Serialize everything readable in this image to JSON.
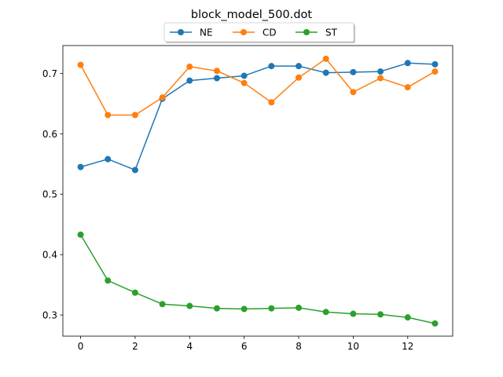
{
  "chart_data": {
    "type": "line",
    "title": "block_model_500.dot",
    "xlabel": "",
    "ylabel": "",
    "x": [
      0,
      1,
      2,
      3,
      4,
      5,
      6,
      7,
      8,
      9,
      10,
      11,
      12,
      13
    ],
    "xlim": [
      -0.65,
      13.65
    ],
    "ylim": [
      0.265,
      0.746
    ],
    "xticks": [
      0,
      2,
      4,
      6,
      8,
      10,
      12
    ],
    "yticks": [
      0.3,
      0.4,
      0.5,
      0.6,
      0.7
    ],
    "grid": false,
    "legend": {
      "placement": "top-center",
      "columns": 3
    },
    "series": [
      {
        "name": "NE",
        "color": "#1f77b4",
        "values": [
          0.545,
          0.558,
          0.54,
          0.658,
          0.688,
          0.692,
          0.696,
          0.712,
          0.712,
          0.701,
          0.702,
          0.703,
          0.717,
          0.715
        ]
      },
      {
        "name": "CD",
        "color": "#ff7f0e",
        "values": [
          0.714,
          0.631,
          0.631,
          0.66,
          0.711,
          0.704,
          0.684,
          0.652,
          0.693,
          0.724,
          0.669,
          0.692,
          0.677,
          0.703
        ]
      },
      {
        "name": "ST",
        "color": "#2ca02c",
        "values": [
          0.433,
          0.357,
          0.337,
          0.318,
          0.315,
          0.311,
          0.31,
          0.311,
          0.312,
          0.305,
          0.302,
          0.301,
          0.296,
          0.286
        ]
      }
    ]
  }
}
